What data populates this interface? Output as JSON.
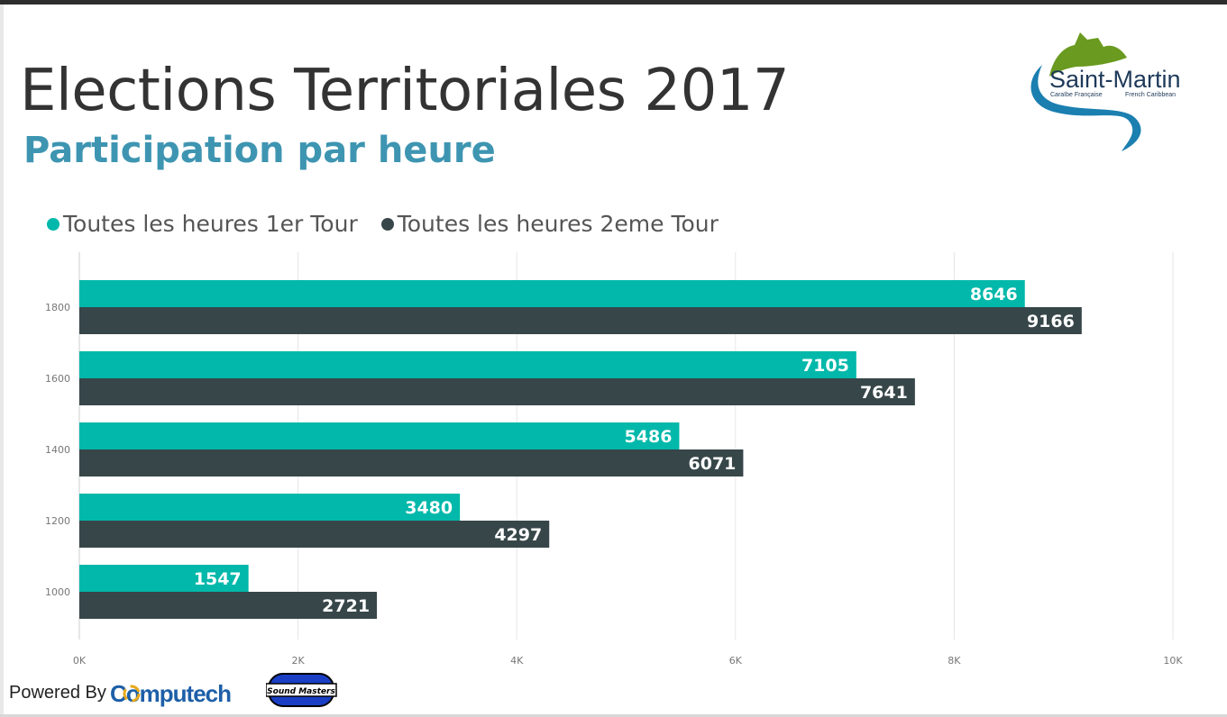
{
  "header": {
    "title": "Elections Territoriales 2017",
    "subtitle": "Participation par heure"
  },
  "logo": {
    "name": "Saint-Martin",
    "tagline_left": "Caraïbe Française",
    "tagline_right": "French Caribbean"
  },
  "footer": {
    "powered_by": "Powered By",
    "company_logo_text": "Computech",
    "partner_logo_text": "Sound Masters"
  },
  "colors": {
    "series1": "#01b8aa",
    "series2": "#374649",
    "subtitle": "#3e95b1",
    "title": "#333333"
  },
  "chart_data": {
    "type": "bar",
    "orientation": "horizontal",
    "categories": [
      "1800",
      "1600",
      "1400",
      "1200",
      "1000"
    ],
    "series": [
      {
        "name": "Toutes les heures 1er Tour",
        "values": [
          8646,
          7105,
          5486,
          3480,
          1547
        ]
      },
      {
        "name": "Toutes les heures 2eme Tour",
        "values": [
          9166,
          7641,
          6071,
          4297,
          2721
        ]
      }
    ],
    "xlim": [
      0,
      10000
    ],
    "xticks": [
      0,
      2000,
      4000,
      6000,
      8000,
      10000
    ],
    "xtick_labels": [
      "0K",
      "2K",
      "4K",
      "6K",
      "8K",
      "10K"
    ],
    "grid": true,
    "legend": "top-left",
    "data_labels": true
  }
}
